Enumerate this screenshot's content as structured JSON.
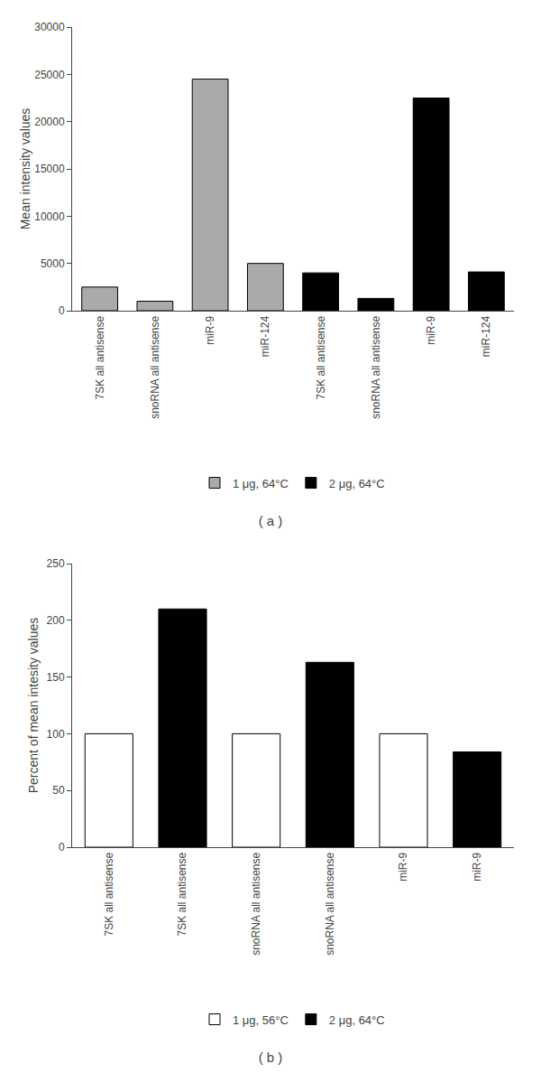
{
  "chart_data": [
    {
      "type": "bar",
      "subtitle": "( a )",
      "ylabel": "Mean intensity values",
      "categories": [
        "7SK all antisense",
        "snoRNA all antisense",
        "miR-9",
        "miR-124",
        "7SK all antisense",
        "snoRNA all antisense",
        "miR-9",
        "miR-124"
      ],
      "series": [
        {
          "name": "1 μg, 64°C",
          "color": "#aaaaaa",
          "values": [
            2500,
            1000,
            24500,
            5000,
            null,
            null,
            null,
            null
          ]
        },
        {
          "name": "2 μg, 64°C",
          "color": "#000000",
          "values": [
            null,
            null,
            null,
            null,
            4000,
            1300,
            22500,
            4100
          ]
        }
      ],
      "ylim": [
        0,
        30000
      ],
      "yticks": [
        0,
        5000,
        10000,
        15000,
        20000,
        25000,
        30000
      ],
      "grid": false,
      "legend": "bottom"
    },
    {
      "type": "bar",
      "subtitle": "( b )",
      "ylabel": "Percent of mean intesity values",
      "categories": [
        "7SK all antisense",
        "7SK all antisense",
        "snoRNA all antisense",
        "snoRNA all antisense",
        "miR-9",
        "miR-9"
      ],
      "series": [
        {
          "name": "1 μg, 56°C",
          "color": "#ffffff",
          "values": [
            100,
            null,
            100,
            null,
            100,
            null
          ]
        },
        {
          "name": "2 μg, 64°C",
          "color": "#000000",
          "values": [
            null,
            210,
            null,
            163,
            null,
            84
          ]
        }
      ],
      "ylim": [
        0,
        250
      ],
      "yticks": [
        0,
        50,
        100,
        150,
        200,
        250
      ],
      "grid": false,
      "legend": "bottom"
    }
  ]
}
